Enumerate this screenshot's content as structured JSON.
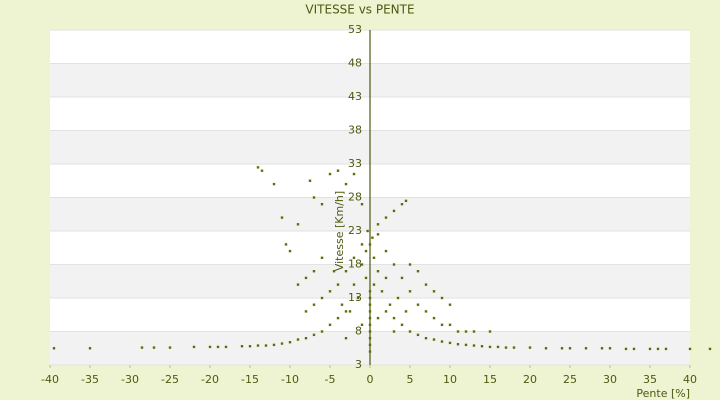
{
  "chart_data": {
    "type": "scatter",
    "title": "VITESSE vs PENTE",
    "x_label": "Pente [%]",
    "y_label": "Vitesse [Km/h]",
    "color": "#5d6e05",
    "grid": true,
    "xlim": [
      -40,
      40
    ],
    "ylim": [
      3,
      53
    ],
    "xticks": [
      -40,
      -35,
      -30,
      -25,
      -20,
      -15,
      -10,
      -5,
      0,
      5,
      10,
      15,
      20,
      25,
      30,
      35,
      40
    ],
    "yticks": [
      3,
      8,
      13,
      18,
      23,
      28,
      33,
      38,
      43,
      48,
      53
    ],
    "series": [
      {
        "name": "Vitesse",
        "x": [
          -39.5,
          -35,
          -28.5,
          -27,
          -25,
          -22,
          -20,
          -19,
          -18,
          -16,
          -15,
          -14,
          -13,
          -12,
          -11,
          -10,
          -9,
          -8,
          -7,
          -6,
          -5,
          -4,
          -3,
          12,
          13,
          14,
          15,
          16,
          17,
          18,
          20,
          22,
          24,
          25,
          27,
          29,
          30,
          32,
          33,
          35,
          36,
          37,
          40,
          42.5,
          5,
          6,
          7,
          8,
          9,
          10,
          11,
          3,
          4,
          2,
          0,
          0,
          0,
          0,
          0,
          0,
          0,
          0,
          0,
          0,
          0.5,
          -0.5,
          1,
          -1,
          0.5,
          -0.5,
          0,
          0.3,
          -0.3,
          1,
          -1,
          2,
          -2,
          3,
          -3,
          4,
          -4,
          5,
          -5,
          6,
          -6,
          7,
          -7,
          8,
          -8,
          9,
          10,
          11,
          12,
          13,
          15,
          1.5,
          -1.5,
          2.5,
          -2.5,
          3.5,
          -3.5,
          4.5,
          -4.5,
          2,
          -2,
          1,
          -1,
          3,
          -3,
          5,
          6,
          7,
          8,
          9,
          10,
          -6,
          -7,
          -8,
          -9,
          -10,
          -10.5,
          -11,
          -9,
          -7,
          -6,
          -5,
          -4,
          -3,
          -2,
          -14,
          -13.5,
          -12,
          -7.5,
          4,
          4.5,
          3,
          2,
          -1,
          1
        ],
        "values": [
          5.5,
          5.5,
          5.6,
          5.6,
          5.6,
          5.7,
          5.7,
          5.7,
          5.7,
          5.8,
          5.8,
          5.9,
          5.9,
          6,
          6.2,
          6.4,
          6.8,
          7,
          7.5,
          8,
          9,
          10,
          11,
          6,
          5.9,
          5.8,
          5.7,
          5.7,
          5.6,
          5.6,
          5.6,
          5.5,
          5.5,
          5.5,
          5.5,
          5.5,
          5.5,
          5.4,
          5.4,
          5.4,
          5.4,
          5.4,
          5.4,
          5.4,
          8,
          7.5,
          7,
          6.8,
          6.5,
          6.3,
          6.1,
          10,
          9,
          11,
          5,
          6,
          7,
          8,
          9,
          10,
          11,
          12,
          13,
          14,
          15,
          16,
          17,
          18,
          19,
          20,
          21,
          22,
          23,
          22.5,
          21,
          20,
          19,
          18,
          17,
          16,
          15,
          14,
          14,
          12,
          13,
          11,
          12,
          10,
          11,
          9,
          9,
          8,
          8,
          8,
          8,
          14,
          13,
          12,
          11,
          13,
          12,
          11,
          17,
          16,
          15,
          10,
          9,
          8,
          7,
          18,
          17,
          15,
          14,
          13,
          12,
          19,
          17,
          16,
          15,
          20,
          21,
          25,
          24,
          28,
          27,
          31.5,
          32,
          30,
          31.5,
          32.5,
          32,
          30,
          30.5,
          27,
          27.5,
          26,
          25,
          27,
          24
        ]
      }
    ]
  }
}
